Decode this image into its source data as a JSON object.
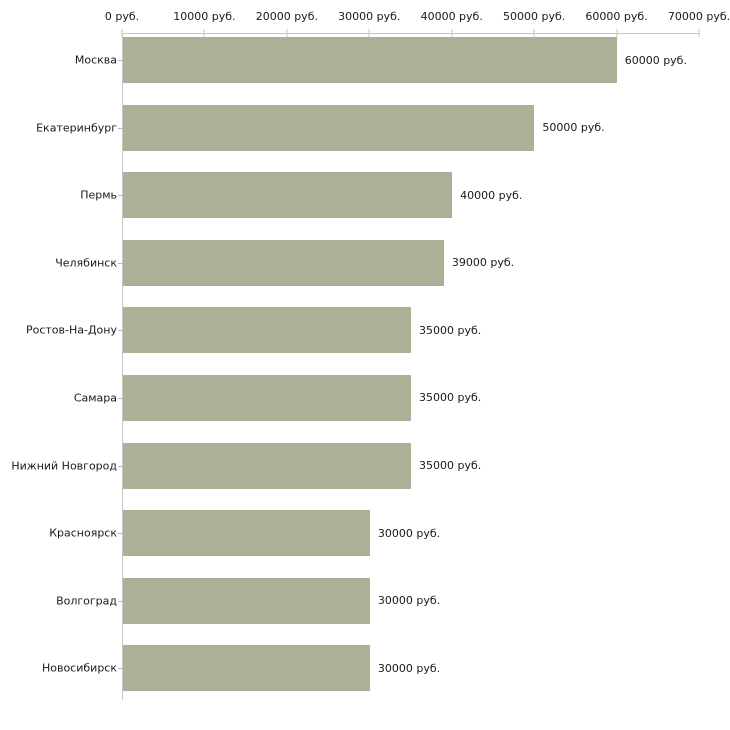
{
  "chart_data": {
    "type": "bar",
    "orientation": "horizontal",
    "title": "",
    "xlabel": "",
    "ylabel": "",
    "xlim": [
      0,
      70000
    ],
    "grid": false,
    "legend_position": "none",
    "x_tick_values": [
      0,
      10000,
      20000,
      30000,
      40000,
      50000,
      60000,
      70000
    ],
    "x_tick_labels": [
      "0 руб.",
      "10000 руб.",
      "20000 руб.",
      "30000 руб.",
      "40000 руб.",
      "50000 руб.",
      "60000 руб.",
      "70000 руб."
    ],
    "categories": [
      "Москва",
      "Екатеринбург",
      "Пермь",
      "Челябинск",
      "Ростов-На-Дону",
      "Самара",
      "Нижний Новгород",
      "Красноярск",
      "Волгоград",
      "Новосибирск"
    ],
    "values": [
      60000,
      50000,
      40000,
      39000,
      35000,
      35000,
      35000,
      30000,
      30000,
      30000
    ],
    "value_labels": [
      "60000 руб.",
      "50000 руб.",
      "40000 руб.",
      "39000 руб.",
      "35000 руб.",
      "35000 руб.",
      "35000 руб.",
      "30000 руб.",
      "30000 руб.",
      "30000 руб."
    ],
    "colors": {
      "bar": "#abb197",
      "axis_line": "#c6c6c6",
      "x_tick": "#cccc99",
      "y_tick_dash": "#b9bfa4",
      "text": "#1a1a1a",
      "background": "#ffffff"
    }
  }
}
